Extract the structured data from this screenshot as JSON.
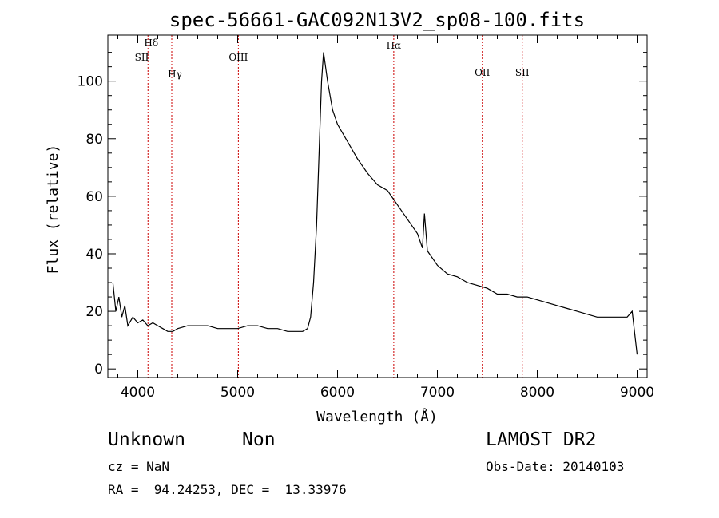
{
  "chart_data": {
    "type": "line",
    "title": "spec-56661-GAC092N13V2_sp08-100.fits",
    "xlabel": "Wavelength (Å)",
    "ylabel": "Flux (relative)",
    "xlim": [
      3700,
      9100
    ],
    "ylim": [
      -3,
      116
    ],
    "x_ticks": [
      4000,
      5000,
      6000,
      7000,
      8000,
      9000
    ],
    "y_ticks": [
      0,
      20,
      40,
      60,
      80,
      100
    ],
    "grid": false,
    "line_color": "#000000",
    "line_markers": [
      {
        "label": "Hδ",
        "wavelength": 4102,
        "color": "#cc0000"
      },
      {
        "label": "SII",
        "wavelength": 4072,
        "color": "#cc0000"
      },
      {
        "label": "Hγ",
        "wavelength": 4340,
        "color": "#cc0000"
      },
      {
        "label": "OIII",
        "wavelength": 5007,
        "color": "#cc0000"
      },
      {
        "label": "Hα",
        "wavelength": 6563,
        "color": "#cc0000"
      },
      {
        "label": "OII",
        "wavelength": 7450,
        "color": "#cc0000"
      },
      {
        "label": "SII",
        "wavelength": 7850,
        "color": "#cc0000"
      }
    ],
    "series": [
      {
        "x": [
          3750,
          3780,
          3810,
          3840,
          3870,
          3900,
          3950,
          4000,
          4050,
          4100,
          4150,
          4200,
          4250,
          4300,
          4350,
          4400,
          4500,
          4600,
          4700,
          4800,
          4900,
          5000,
          5100,
          5200,
          5300,
          5400,
          5500,
          5600,
          5650,
          5700,
          5730,
          5760,
          5790,
          5820,
          5840,
          5860,
          5880,
          5900,
          5950,
          6000,
          6100,
          6200,
          6300,
          6400,
          6500,
          6600,
          6700,
          6800,
          6850,
          6870,
          6900,
          7000,
          7100,
          7200,
          7300,
          7400,
          7500,
          7600,
          7700,
          7800,
          7900,
          8000,
          8100,
          8200,
          8300,
          8400,
          8500,
          8600,
          8700,
          8800,
          8900,
          8950,
          9000
        ],
        "y": [
          30,
          20,
          25,
          18,
          22,
          15,
          18,
          16,
          17,
          15,
          16,
          15,
          14,
          13,
          13,
          14,
          15,
          15,
          15,
          14,
          14,
          14,
          15,
          15,
          14,
          14,
          13,
          13,
          13,
          14,
          18,
          30,
          50,
          80,
          100,
          110,
          105,
          100,
          90,
          85,
          79,
          73,
          68,
          64,
          62,
          57,
          52,
          47,
          42,
          54,
          41,
          36,
          33,
          32,
          30,
          29,
          28,
          26,
          26,
          25,
          25,
          24,
          23,
          22,
          21,
          20,
          19,
          18,
          18,
          18,
          18,
          20,
          5
        ]
      }
    ]
  },
  "info": {
    "class": "Unknown",
    "subclass": "Non",
    "survey": "LAMOST DR2",
    "cz": "cz = NaN",
    "obs_date": "Obs-Date: 20140103",
    "coords": "RA =  94.24253, DEC =  13.33976"
  }
}
